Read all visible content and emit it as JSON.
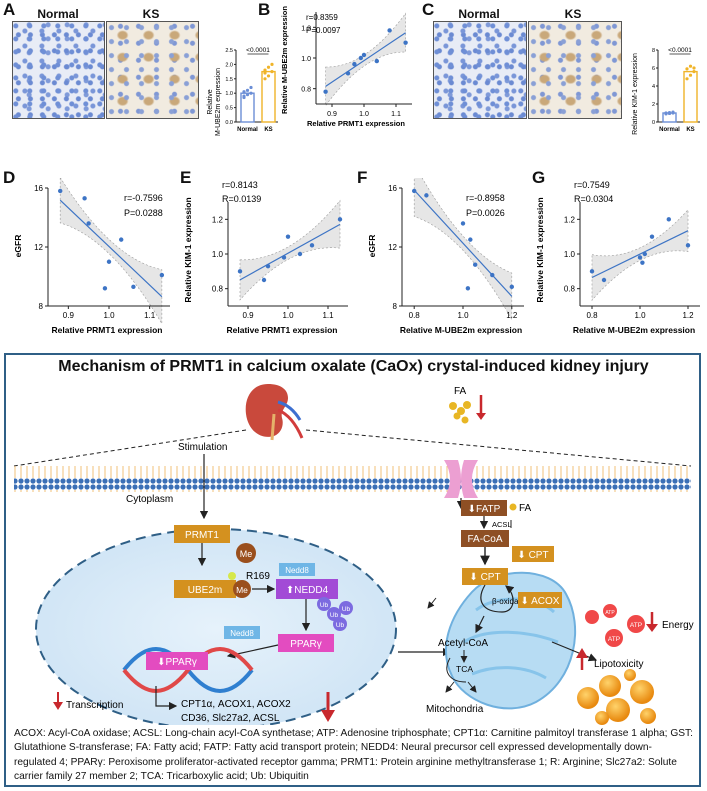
{
  "panels": {
    "A": {
      "letter": "A",
      "normal_label": "Normal",
      "ks_label": "KS",
      "ylabel_line1": "Relative",
      "ylabel_line2": "M-UBE2m expression",
      "pvalue": "<0.0001",
      "yticks": [
        "0.0",
        "0.5",
        "1.0",
        "1.5",
        "2.0",
        "2.5"
      ],
      "groups": [
        "Normal",
        "KS"
      ]
    },
    "B": {
      "letter": "B",
      "r": "r=0.8359",
      "p": "P=0.0097",
      "xlabel": "Relative PRMT1 expression",
      "ylabel": "Relative M-UBE2m expression",
      "xticks": [
        "0.9",
        "1.0",
        "1.1"
      ],
      "yticks": [
        "0.8",
        "1.0",
        "1.2"
      ]
    },
    "C": {
      "letter": "C",
      "normal_label": "Normal",
      "ks_label": "KS",
      "ylabel": "Relative KIM-1 expression",
      "pvalue": "<0.0001",
      "yticks": [
        "0",
        "2",
        "4",
        "6",
        "8"
      ],
      "groups": [
        "Normal",
        "KS"
      ]
    },
    "D": {
      "letter": "D",
      "r": "r=-0.7596",
      "p": "P=0.0288",
      "xlabel": "Relative PRMT1 expression",
      "ylabel": "eGFR",
      "xticks": [
        "0.9",
        "1.0",
        "1.1"
      ],
      "yticks": [
        "8",
        "12",
        "16"
      ]
    },
    "E": {
      "letter": "E",
      "r": "r=0.8143",
      "p": "R=0.0139",
      "xlabel": "Relative PRMT1 expression",
      "ylabel": "Relative KIM-1 expression",
      "xticks": [
        "0.9",
        "1.0",
        "1.1"
      ],
      "yticks": [
        "0.8",
        "1.0",
        "1.2"
      ]
    },
    "F": {
      "letter": "F",
      "r": "r=-0.8958",
      "p": "P=0.0026",
      "xlabel": "Relative M-UBE2m expression",
      "ylabel": "eGFR",
      "xticks": [
        "0.8",
        "1.0",
        "1.2"
      ],
      "yticks": [
        "8",
        "12",
        "16"
      ]
    },
    "G": {
      "letter": "G",
      "r": "r=0.7549",
      "p": "R=0.0304",
      "xlabel": "Relative M-UBE2m expression",
      "ylabel": "Relative KIM-1 expression",
      "xticks": [
        "0.8",
        "1.0",
        "1.2"
      ],
      "yticks": [
        "0.8",
        "1.0",
        "1.2"
      ]
    }
  },
  "chart_data": [
    {
      "id": "A",
      "type": "bar",
      "categories": [
        "Normal",
        "KS"
      ],
      "values": [
        1.0,
        1.75
      ],
      "ylim": [
        0,
        2.5
      ],
      "points": [
        [
          0.85,
          0.95,
          1.0,
          1.05,
          1.1,
          1.2,
          0.9
        ],
        [
          1.5,
          1.6,
          1.75,
          1.8,
          1.9,
          2.0,
          1.7
        ]
      ],
      "colors": [
        "#6b8ed6",
        "#f0b429"
      ]
    },
    {
      "id": "B",
      "type": "scatter",
      "xlim": [
        0.85,
        1.15
      ],
      "ylim": [
        0.7,
        1.3
      ],
      "x": [
        0.88,
        0.95,
        0.97,
        0.99,
        1.0,
        1.04,
        1.08,
        1.13
      ],
      "y": [
        0.78,
        0.9,
        0.96,
        1.0,
        1.02,
        0.98,
        1.18,
        1.1
      ]
    },
    {
      "id": "C",
      "type": "bar",
      "categories": [
        "Normal",
        "KS"
      ],
      "values": [
        1.0,
        5.6
      ],
      "ylim": [
        0,
        8
      ],
      "points": [
        [
          0.9,
          0.95,
          1.0,
          1.0,
          1.05,
          1.1
        ],
        [
          4.8,
          5.2,
          5.6,
          5.9,
          6.2,
          6.0
        ]
      ],
      "colors": [
        "#6b8ed6",
        "#f0b429"
      ]
    },
    {
      "id": "D",
      "type": "scatter",
      "xlim": [
        0.85,
        1.15
      ],
      "ylim": [
        8,
        16
      ],
      "x": [
        0.88,
        0.94,
        0.95,
        0.99,
        1.0,
        1.03,
        1.06,
        1.13
      ],
      "y": [
        15.8,
        15.3,
        13.6,
        9.2,
        11.0,
        12.5,
        9.3,
        10.1
      ]
    },
    {
      "id": "E",
      "type": "scatter",
      "xlim": [
        0.85,
        1.15
      ],
      "ylim": [
        0.7,
        1.3
      ],
      "x": [
        0.88,
        0.94,
        0.95,
        0.99,
        1.0,
        1.03,
        1.06,
        1.13
      ],
      "y": [
        0.9,
        0.85,
        0.93,
        0.98,
        1.1,
        1.0,
        1.05,
        1.2
      ]
    },
    {
      "id": "F",
      "type": "scatter",
      "xlim": [
        0.75,
        1.25
      ],
      "ylim": [
        8,
        16
      ],
      "x": [
        0.8,
        0.85,
        1.0,
        1.02,
        1.03,
        1.05,
        1.12,
        1.2
      ],
      "y": [
        15.8,
        15.5,
        13.6,
        9.2,
        12.5,
        10.8,
        10.1,
        9.3
      ]
    },
    {
      "id": "G",
      "type": "scatter",
      "xlim": [
        0.75,
        1.25
      ],
      "ylim": [
        0.7,
        1.3
      ],
      "x": [
        0.8,
        0.85,
        1.0,
        1.01,
        1.02,
        1.05,
        1.12,
        1.2
      ],
      "y": [
        0.9,
        0.85,
        0.98,
        0.95,
        1.0,
        1.1,
        1.2,
        1.05
      ]
    }
  ],
  "mechanism": {
    "title": "Mechanism of PRMT1 in calcium oxalate (CaOx) crystal-induced kidney injury",
    "stimulation": "Stimulation",
    "cytoplasm": "Cytoplasm",
    "fa_top": "FA",
    "prmt1": "PRMT1",
    "me1": "Me",
    "r169": "R169",
    "ube2m": "UBE2m",
    "me2": "Me",
    "nedd8_top": "Nedd8",
    "nedd4": "⬆NEDD4",
    "nedd8_bottom": "Nedd8",
    "ub": "Ub",
    "pparg_right": "PPARγ",
    "pparg_dna": "⬇PPARγ",
    "transcription": "Transcription",
    "genes_line1": "CPT1α, ACOX1, ACOX2",
    "genes_line2": "CD36, Slc27a2, ACSL",
    "fatp": "⬇FATP",
    "fa_side": "FA",
    "acsl": "ACSL",
    "facoa": "FA-CoA",
    "cpt_outer": "⬇ CPT",
    "cpt_inner": "⬇ CPT",
    "beta_ox": "β-oxidation",
    "acox": "⬇ ACOX",
    "acetylcoa": "Acetyl-CoA",
    "tca": "TCA",
    "mitochondria": "Mitochondria",
    "atp": "ATP",
    "energy": "Energy",
    "lipotoxicity": "Lipotoxicity"
  },
  "abbreviations": "ACOX: Acyl-CoA oxidase; ACSL: Long-chain acyl-CoA synthetase; ATP: Adenosine triphosphate; CPT1α: Carnitine palmitoyl transferase 1 alpha; GST: Glutathione S-transferase; FA: Fatty acid; FATP: Fatty acid transport protein; NEDD4: Neural precursor cell expressed developmentally down-regulated 4; PPARγ: Peroxisome proliferator-activated receptor gamma; PRMT1: Protein arginine methyltransferase 1; R: Arginine; Slc27a2: Solute carrier family 27 member 2; TCA: Tricarboxylic acid; Ub: Ubiquitin",
  "colors": {
    "gold": "#d4911f",
    "purple": "#a24bd6",
    "blue": "#3f6fb5",
    "red": "#c8282d",
    "membrane": "#3b6fb6"
  }
}
